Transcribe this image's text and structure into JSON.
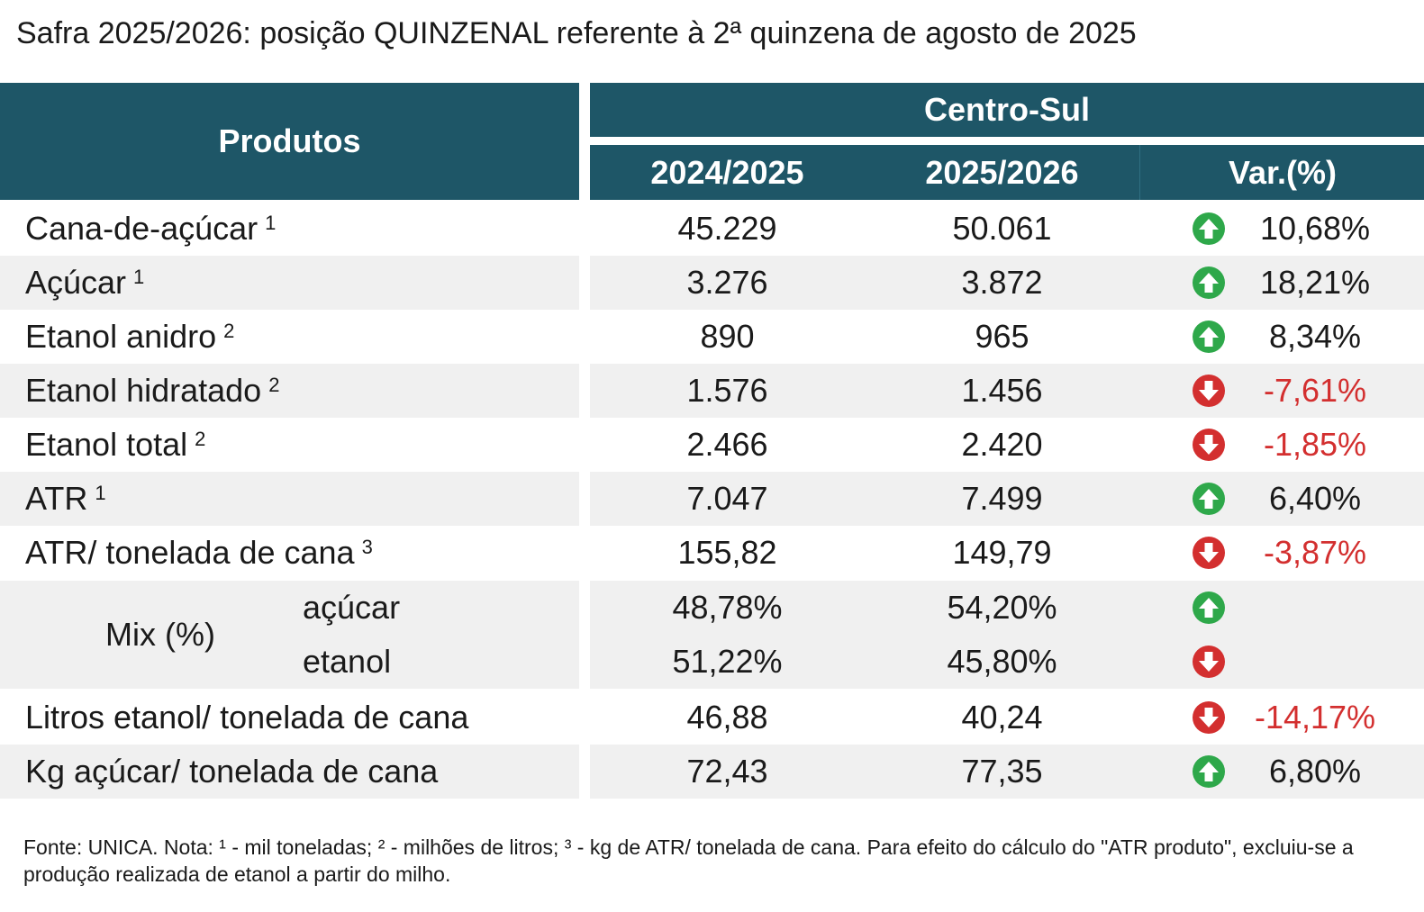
{
  "title": "Safra 2025/2026: posição QUINZENAL referente à 2ª quinzena de agosto de 2025",
  "header": {
    "produtos": "Produtos",
    "region": "Centro-Sul",
    "col1": "2024/2025",
    "col2": "2025/2026",
    "col3": "Var.(%)"
  },
  "colors": {
    "header_bg": "#1e5667",
    "up": "#2ea84a",
    "down": "#d32f2f"
  },
  "chart_data": {
    "type": "table",
    "title": "Safra 2025/2026: posição QUINZENAL referente à 2ª quinzena de agosto de 2025",
    "columns": [
      "Produtos",
      "2024/2025",
      "2025/2026",
      "Var.(%)"
    ],
    "rows": [
      {
        "label": "Cana-de-açúcar",
        "note": "1",
        "v2024": "45.229",
        "v2025": "50.061",
        "trend": "up",
        "var": "10,68%"
      },
      {
        "label": "Açúcar",
        "note": "1",
        "v2024": "3.276",
        "v2025": "3.872",
        "trend": "up",
        "var": "18,21%"
      },
      {
        "label": "Etanol anidro",
        "note": "2",
        "v2024": "890",
        "v2025": "965",
        "trend": "up",
        "var": "8,34%"
      },
      {
        "label": "Etanol hidratado",
        "note": "2",
        "v2024": "1.576",
        "v2025": "1.456",
        "trend": "down",
        "var": "-7,61%"
      },
      {
        "label": "Etanol total",
        "note": "2",
        "v2024": "2.466",
        "v2025": "2.420",
        "trend": "down",
        "var": "-1,85%"
      },
      {
        "label": "ATR",
        "note": "1",
        "v2024": "7.047",
        "v2025": "7.499",
        "trend": "up",
        "var": "6,40%"
      },
      {
        "label": "ATR/ tonelada de cana",
        "note": "3",
        "v2024": "155,82",
        "v2025": "149,79",
        "trend": "down",
        "var": "-3,87%"
      }
    ],
    "mix": {
      "label": "Mix (%)",
      "rows": [
        {
          "label": "açúcar",
          "v2024": "48,78%",
          "v2025": "54,20%",
          "trend": "up"
        },
        {
          "label": "etanol",
          "v2024": "51,22%",
          "v2025": "45,80%",
          "trend": "down"
        }
      ]
    },
    "rows_after": [
      {
        "label": "Litros etanol/ tonelada de cana",
        "v2024": "46,88",
        "v2025": "40,24",
        "trend": "down",
        "var": "-14,17%"
      },
      {
        "label": "Kg açúcar/ tonelada de cana",
        "v2024": "72,43",
        "v2025": "77,35",
        "trend": "up",
        "var": "6,80%"
      }
    ]
  },
  "footnote": "Fonte: UNICA. Nota: ¹ - mil toneladas; ² - milhões de litros; ³ - kg de ATR/ tonelada de cana. Para efeito do cálculo do \"ATR produto\", excluiu-se a produção realizada de etanol a partir do milho."
}
